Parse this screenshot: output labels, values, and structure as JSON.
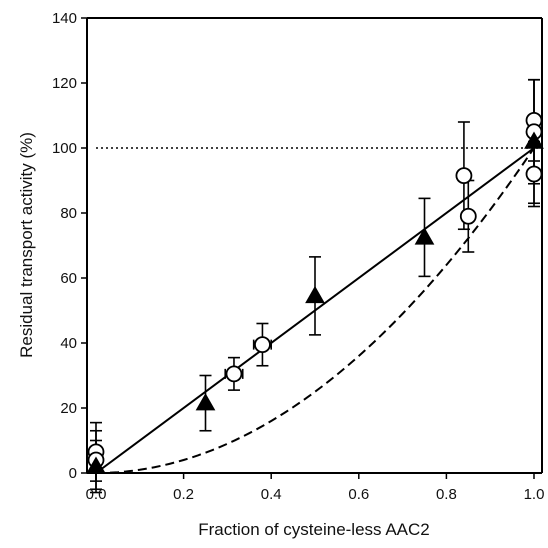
{
  "chart_data": {
    "type": "scatter",
    "title": "",
    "xlabel": "Fraction of cysteine-less AAC2",
    "ylabel": "Residual transport activity (%)",
    "xlim": [
      0,
      1
    ],
    "ylim": [
      0,
      140
    ],
    "x_ticks": [
      "0.0",
      "0.2",
      "0.4",
      "0.6",
      "0.8",
      "1.0"
    ],
    "y_ticks": [
      "0",
      "20",
      "40",
      "60",
      "80",
      "100",
      "120",
      "140"
    ],
    "grid": false,
    "series": [
      {
        "marker": "open-circle",
        "points": [
          {
            "x": 0.0,
            "y": 6.5,
            "yerr": 9,
            "xerr": 0.01
          },
          {
            "x": 0.0,
            "y": 4.0,
            "yerr": 9,
            "xerr": 0.01
          },
          {
            "x": 0.315,
            "y": 30.5,
            "yerr": 5,
            "xerr": 0.02
          },
          {
            "x": 0.38,
            "y": 39.5,
            "yerr": 6.5,
            "xerr": 0.02
          },
          {
            "x": 0.84,
            "y": 91.5,
            "yerr": 16.5,
            "xerr": 0.01
          },
          {
            "x": 0.85,
            "y": 79.0,
            "yerr": 11,
            "xerr": 0.01
          },
          {
            "x": 1.0,
            "y": 108.5,
            "yerr": 12.5,
            "xerr": 0.01
          },
          {
            "x": 1.0,
            "y": 105.0,
            "yerr": 16,
            "xerr": 0.01
          },
          {
            "x": 1.0,
            "y": 92.0,
            "yerr": 10,
            "xerr": 0.01
          }
        ]
      },
      {
        "marker": "filled-triangle",
        "points": [
          {
            "x": 0.0,
            "y": 2.0,
            "yerr": 8
          },
          {
            "x": 0.25,
            "y": 21.5,
            "yerr": 8.5
          },
          {
            "x": 0.5,
            "y": 54.5,
            "yerr": 12
          },
          {
            "x": 0.75,
            "y": 72.5,
            "yerr": 12
          },
          {
            "x": 1.0,
            "y": 102.0,
            "yerr": 19
          }
        ]
      }
    ],
    "lines": [
      {
        "style": "solid",
        "type": "linear",
        "from": [
          0,
          0
        ],
        "to": [
          1,
          100
        ]
      },
      {
        "style": "dashed",
        "type": "quadratic",
        "equation": "y = 100*x^2"
      },
      {
        "style": "dotted",
        "type": "horizontal",
        "y": 100
      }
    ]
  }
}
